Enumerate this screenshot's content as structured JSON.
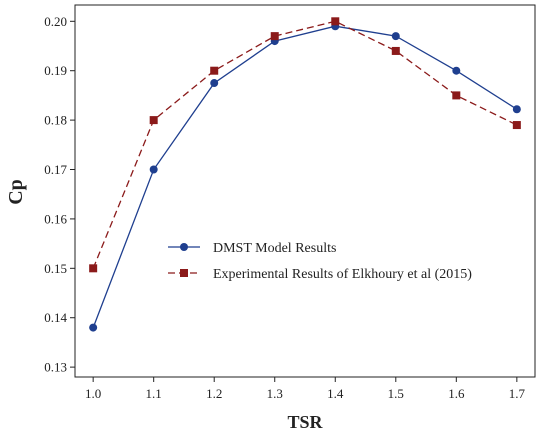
{
  "chart_data": {
    "type": "line",
    "title": "",
    "xlabel": "TSR",
    "ylabel": "Cp",
    "xlim": [
      0.97,
      1.73
    ],
    "ylim": [
      0.128,
      0.2033
    ],
    "xticks": [
      1.0,
      1.1,
      1.2,
      1.3,
      1.4,
      1.5,
      1.6,
      1.7
    ],
    "xtick_labels": [
      "1.0",
      "1.1",
      "1.2",
      "1.3",
      "1.4",
      "1.5",
      "1.6",
      "1.7"
    ],
    "yticks": [
      0.13,
      0.14,
      0.15,
      0.16,
      0.17,
      0.18,
      0.19,
      0.2
    ],
    "ytick_labels": [
      "0.13",
      "0.14",
      "0.15",
      "0.16",
      "0.17",
      "0.18",
      "0.19",
      "0.20"
    ],
    "grid": false,
    "legend_position": "center-right",
    "series": [
      {
        "name": "DMST Model Results",
        "color": "#1f3f8f",
        "line_style": "solid",
        "marker": "circle",
        "x": [
          1.0,
          1.1,
          1.2,
          1.3,
          1.4,
          1.5,
          1.6,
          1.7
        ],
        "y": [
          0.138,
          0.17,
          0.1875,
          0.196,
          0.199,
          0.197,
          0.19,
          0.1822
        ]
      },
      {
        "name": "Experimental Results of Elkhoury et al (2015)",
        "color": "#8b1a1a",
        "line_style": "dashed",
        "marker": "square",
        "x": [
          1.0,
          1.1,
          1.2,
          1.3,
          1.4,
          1.5,
          1.6,
          1.7
        ],
        "y": [
          0.15,
          0.18,
          0.19,
          0.197,
          0.2,
          0.194,
          0.185,
          0.179
        ]
      }
    ]
  }
}
